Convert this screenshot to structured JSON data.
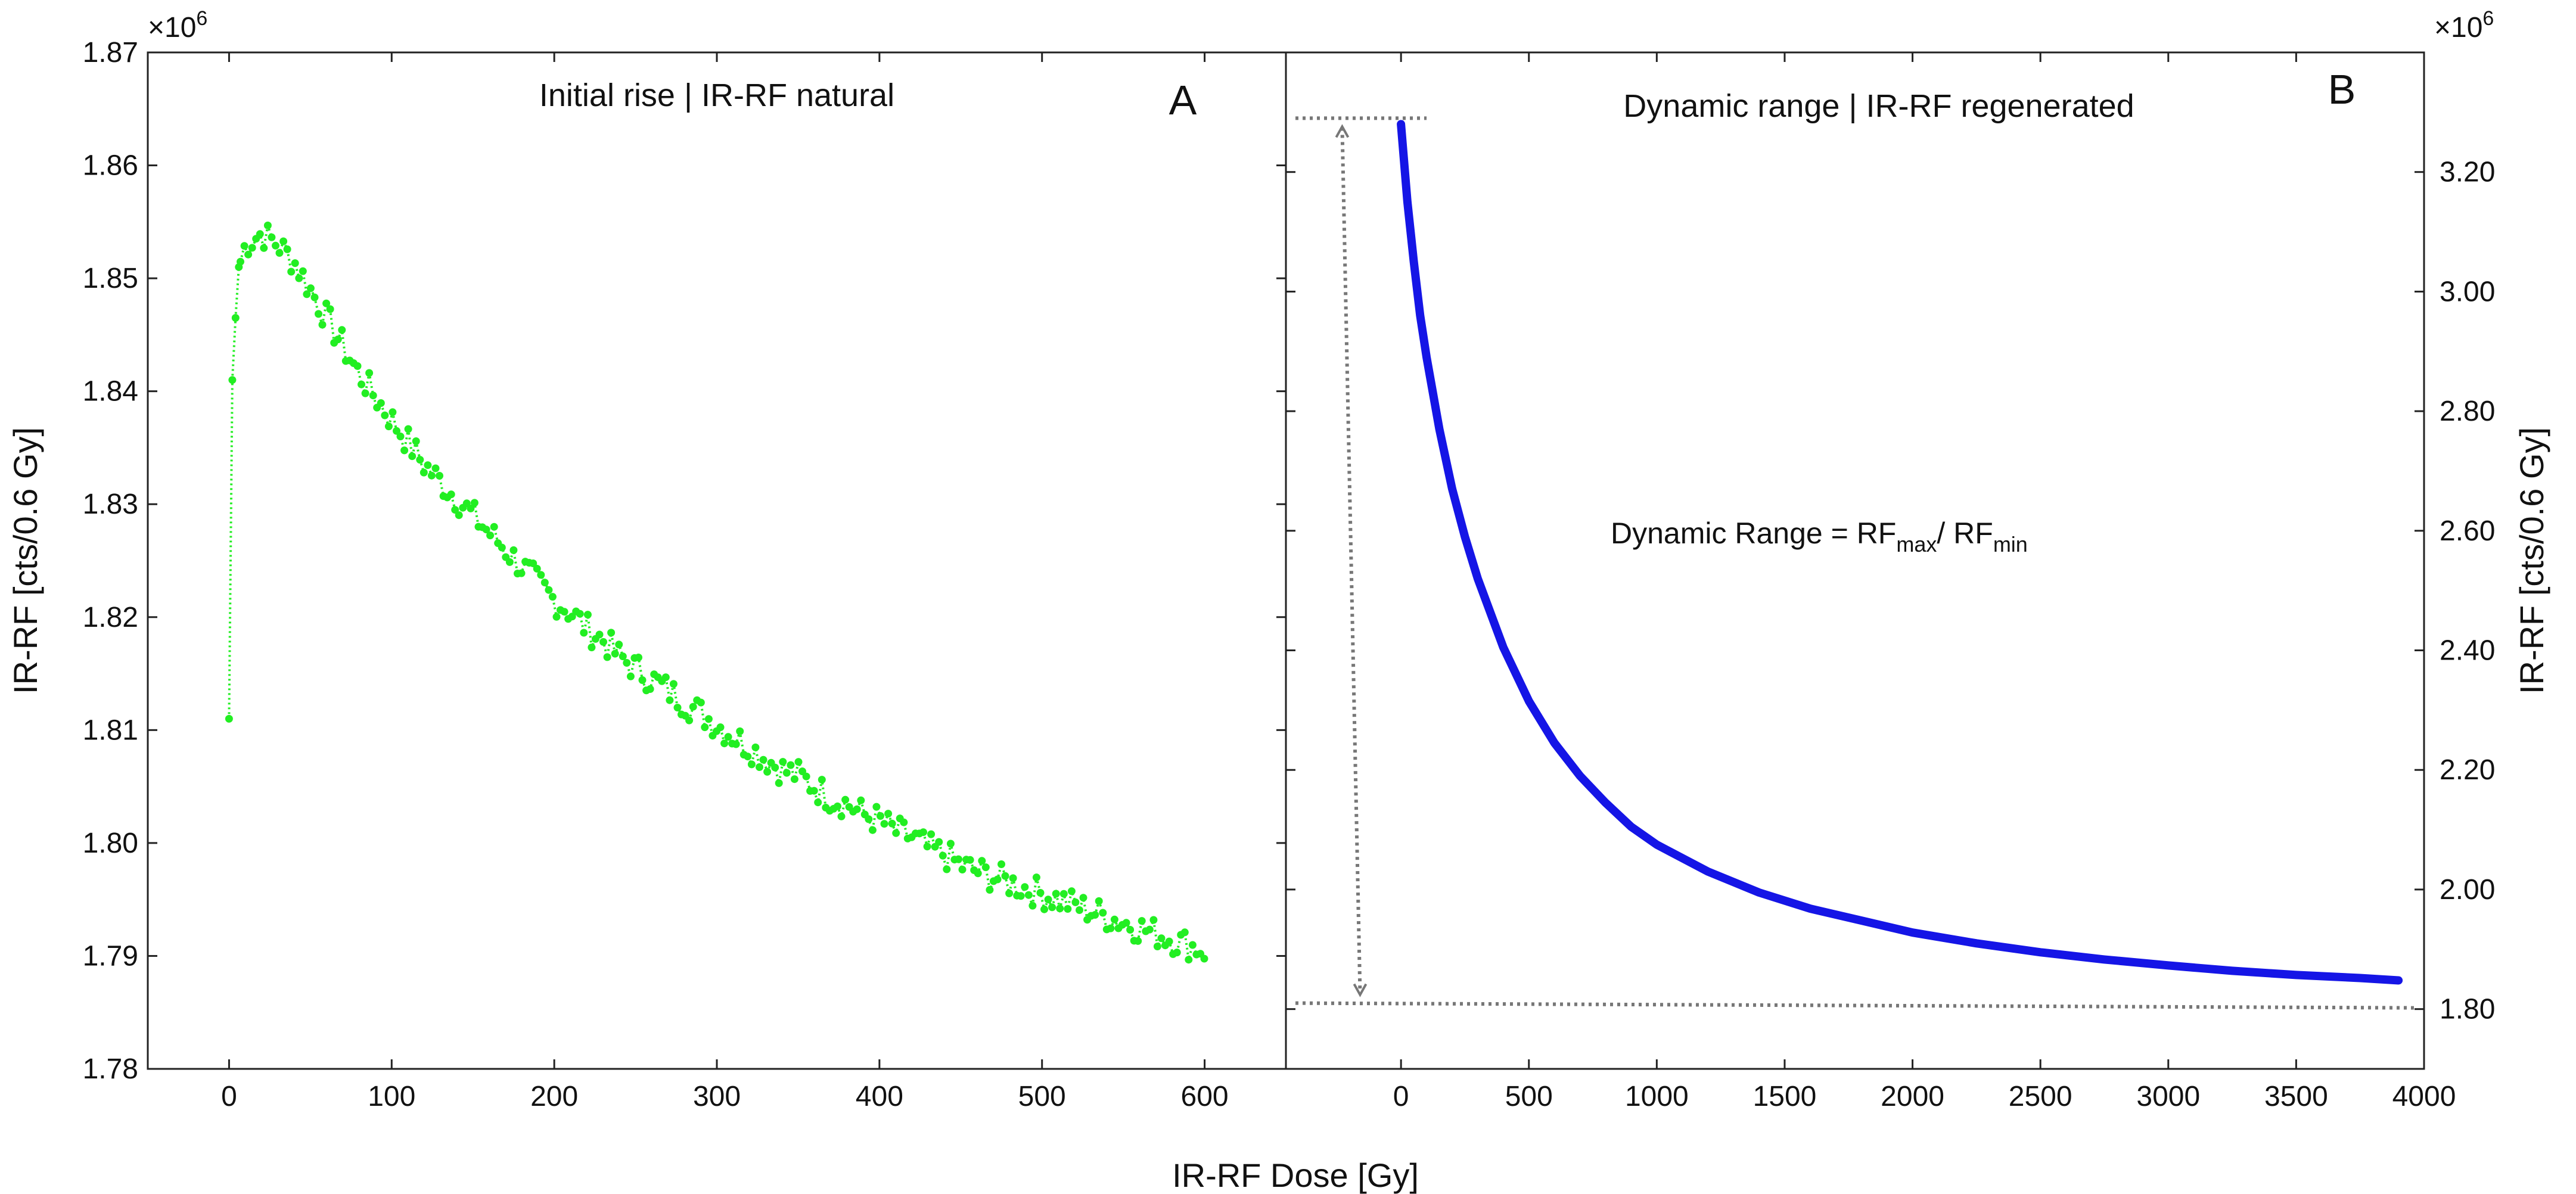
{
  "figure": {
    "shared_xlabel": "IR-RF Dose [Gy]"
  },
  "chart_data": [
    {
      "panel": "A",
      "type": "line",
      "title": "Initial rise | IR-RF natural",
      "panel_label": "A",
      "xlabel": "IR-RF Dose [Gy]",
      "ylabel": "IR-RF [cts/0.6 Gy]",
      "y_multiplier": "×10",
      "y_multiplier_exp": "6",
      "xlim": [
        -50,
        650
      ],
      "ylim": [
        1.78,
        1.87
      ],
      "x_ticks": [
        0,
        100,
        200,
        300,
        400,
        500,
        600
      ],
      "y_ticks": [
        "1.78",
        "1.79",
        "1.80",
        "1.81",
        "1.82",
        "1.83",
        "1.84",
        "1.85",
        "1.86",
        "1.87"
      ],
      "grid": false,
      "marker": "filled-circle",
      "line_style": "dotted",
      "color": "#22ee22",
      "series": [
        {
          "x": [
            0,
            2,
            4,
            6,
            10,
            15,
            20,
            25,
            30,
            40,
            50,
            60,
            70,
            80,
            90,
            100,
            110,
            120,
            130,
            140,
            150,
            160,
            170,
            180,
            190,
            200,
            210,
            220,
            230,
            240,
            250,
            260,
            270,
            280,
            290,
            300,
            310,
            320,
            330,
            340,
            350,
            360,
            370,
            380,
            390,
            400,
            410,
            420,
            430,
            440,
            450,
            460,
            470,
            480,
            490,
            500,
            510,
            520,
            530,
            540,
            550,
            560,
            570,
            580,
            590,
            600
          ],
          "y": [
            1.811,
            1.841,
            1.8465,
            1.851,
            1.853,
            1.8535,
            1.854,
            1.8535,
            1.853,
            1.8515,
            1.849,
            1.8465,
            1.844,
            1.8415,
            1.8395,
            1.8375,
            1.8355,
            1.8335,
            1.832,
            1.8305,
            1.829,
            1.8275,
            1.826,
            1.8245,
            1.823,
            1.8215,
            1.8205,
            1.819,
            1.818,
            1.8165,
            1.8155,
            1.8145,
            1.8135,
            1.8125,
            1.8115,
            1.8105,
            1.8095,
            1.8085,
            1.8075,
            1.8065,
            1.806,
            1.805,
            1.804,
            1.8035,
            1.8025,
            1.802,
            1.801,
            1.8005,
            1.7995,
            1.799,
            1.798,
            1.7975,
            1.797,
            1.7965,
            1.796,
            1.7955,
            1.795,
            1.7945,
            1.794,
            1.7935,
            1.793,
            1.7925,
            1.792,
            1.7915,
            1.791,
            1.7905
          ]
        }
      ]
    },
    {
      "panel": "B",
      "type": "line",
      "title": "Dynamic range | IR-RF regenerated",
      "panel_label": "B",
      "xlabel": "IR-RF Dose [Gy]",
      "ylabel": "IR-RF [cts/0.6 Gy]",
      "y_multiplier": "×10",
      "y_multiplier_exp": "6",
      "xlim": [
        -450,
        4000
      ],
      "ylim": [
        1.7,
        3.4
      ],
      "x_ticks": [
        0,
        500,
        1000,
        1500,
        2000,
        2500,
        3000,
        3500,
        4000
      ],
      "y_ticks": [
        "1.80",
        "2.00",
        "2.20",
        "2.40",
        "2.60",
        "2.80",
        "3.00",
        "3.20"
      ],
      "y_axis_side": "right",
      "grid": false,
      "color": "#1515e6",
      "annotation": {
        "text": "Dynamic Range = RF",
        "sub1": "max",
        "mid": "/ RF",
        "sub2": "min",
        "rf_max": 3.29,
        "rf_min": 1.81
      },
      "series": [
        {
          "x": [
            0,
            25,
            50,
            75,
            100,
            150,
            200,
            250,
            300,
            400,
            500,
            600,
            700,
            800,
            900,
            1000,
            1200,
            1400,
            1600,
            1800,
            2000,
            2250,
            2500,
            2750,
            3000,
            3250,
            3500,
            3750,
            3900
          ],
          "y": [
            3.28,
            3.15,
            3.05,
            2.96,
            2.89,
            2.77,
            2.67,
            2.59,
            2.52,
            2.405,
            2.315,
            2.245,
            2.19,
            2.145,
            2.105,
            2.075,
            2.03,
            1.995,
            1.968,
            1.948,
            1.928,
            1.91,
            1.895,
            1.883,
            1.873,
            1.864,
            1.857,
            1.852,
            1.848
          ]
        }
      ]
    }
  ]
}
